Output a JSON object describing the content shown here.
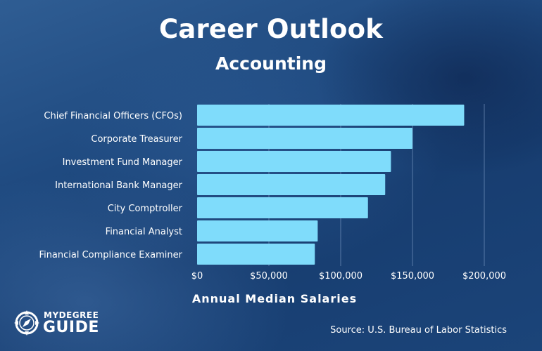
{
  "header": {
    "title": "Career Outlook",
    "subtitle": "Accounting"
  },
  "chart_data": {
    "type": "bar",
    "orientation": "horizontal",
    "categories": [
      "Chief Financial Officers (CFOs)",
      "Corporate Treasurer",
      "Investment Fund Manager",
      "International Bank Manager",
      "City Comptroller",
      "Financial Analyst",
      "Financial Compliance Examiner"
    ],
    "values": [
      186000,
      150000,
      135000,
      131000,
      119000,
      84000,
      82000
    ],
    "xlabel": "Annual Median Salaries",
    "ylabel": "",
    "xlim": [
      0,
      200000
    ],
    "ticks": [
      0,
      50000,
      100000,
      150000,
      200000
    ],
    "tick_labels": [
      "$0",
      "$50,000",
      "$100,000",
      "$150,000",
      "$200,000"
    ],
    "grid": true,
    "bar_color": "#7fdcfb"
  },
  "footer": {
    "source": "Source: U.S. Bureau of Labor Statistics",
    "logo_top": "MYDEGREE",
    "logo_bottom": "GUIDE"
  }
}
